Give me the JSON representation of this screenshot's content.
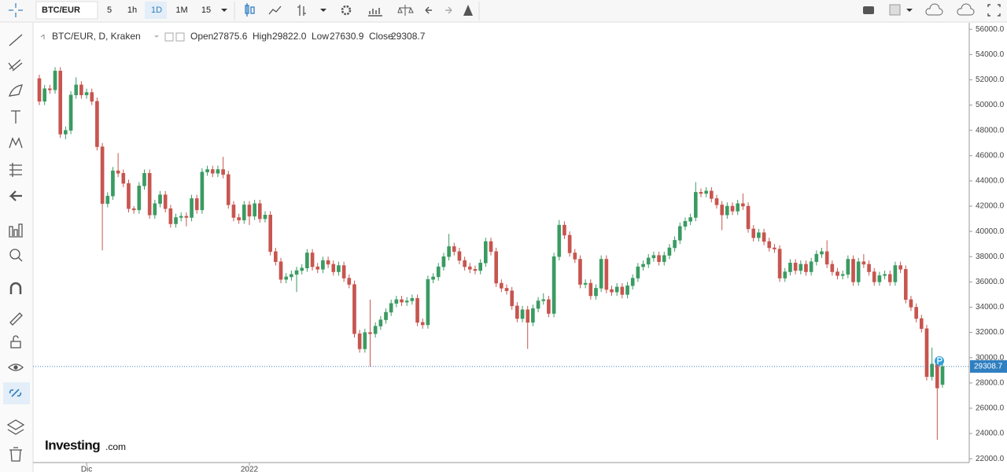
{
  "toolbar": {
    "symbol": "BTC/EUR",
    "intervals": [
      "5",
      "1h",
      "1D",
      "1M",
      "15"
    ]
  },
  "logo": {
    "brand": "Investing",
    "suffix": ".com"
  },
  "chart_data": {
    "type": "candlestick",
    "header": {
      "title": "BTC/EUR, D, Kraken",
      "fields": [
        "Open",
        "High",
        "Low",
        "Close"
      ],
      "value_labels": [
        "27875.6",
        "29822.0",
        "27630.9",
        "29308.7"
      ]
    },
    "up_color": "#3a9b62",
    "down_color": "#c7554f",
    "ylim": [
      21700,
      56450
    ],
    "yticks": [
      {
        "value": 22000,
        "label": "22000.0"
      },
      {
        "value": 24000,
        "label": "24000.0"
      },
      {
        "value": 26000,
        "label": "26000.0"
      },
      {
        "value": 28000,
        "label": "28000.0"
      },
      {
        "value": 30000,
        "label": "30000.0"
      },
      {
        "value": 32000,
        "label": "32000.0"
      },
      {
        "value": 34000,
        "label": "34000.0"
      },
      {
        "value": 36000,
        "label": "36000.0"
      },
      {
        "value": 38000,
        "label": "38000.0"
      },
      {
        "value": 40000,
        "label": "40000.0"
      },
      {
        "value": 42000,
        "label": "42000.0"
      },
      {
        "value": 44000,
        "label": "44000.0"
      },
      {
        "value": 46000,
        "label": "46000.0"
      },
      {
        "value": 48000,
        "label": "48000.0"
      },
      {
        "value": 50000,
        "label": "50000.0"
      },
      {
        "value": 52000,
        "label": "52000.0"
      },
      {
        "value": 54000,
        "label": "54000.0"
      },
      {
        "value": 56000,
        "label": "56000.0"
      }
    ],
    "categories": [
      null,
      null,
      null,
      null,
      null,
      null,
      null,
      null,
      null,
      "Dic",
      null,
      null,
      null,
      null,
      null,
      null,
      null,
      null,
      null,
      null,
      null,
      null,
      null,
      null,
      null,
      null,
      null,
      null,
      null,
      null,
      null,
      null,
      null,
      null,
      null,
      null,
      null,
      null,
      null,
      null,
      "2022",
      null,
      null,
      null,
      null,
      null,
      null,
      null,
      null,
      null,
      null,
      null,
      null,
      null,
      null,
      null,
      null,
      null,
      null,
      null,
      null,
      null,
      null,
      null,
      null,
      null,
      null,
      null,
      null,
      null,
      null,
      null,
      null,
      null,
      null,
      null,
      null,
      null,
      null,
      null,
      null,
      null,
      null,
      null,
      null,
      null,
      null,
      null,
      null,
      null,
      null,
      null,
      null,
      null,
      null,
      null,
      null,
      null,
      null,
      null,
      null,
      null,
      null,
      null,
      null,
      null,
      null,
      null,
      null,
      null,
      null,
      null,
      null,
      null,
      null,
      null,
      null,
      null,
      null,
      null,
      null,
      null,
      null,
      null,
      null,
      null,
      null,
      null,
      null,
      null,
      null,
      null,
      null,
      null,
      null,
      null,
      null,
      null,
      null,
      null,
      null,
      null,
      null,
      null,
      null,
      null,
      null,
      null,
      null,
      null,
      null,
      null,
      null,
      null,
      null,
      null,
      null,
      null,
      null,
      null,
      null,
      null,
      null,
      null,
      null,
      null,
      null,
      null,
      null,
      null,
      null,
      null,
      null
    ],
    "open": [
      52100,
      50300,
      51300,
      51200,
      52700,
      47700,
      48000,
      50800,
      51600,
      50800,
      51000,
      50300,
      46700,
      42200,
      42800,
      44800,
      44600,
      43800,
      41800,
      41700,
      43600,
      44600,
      41300,
      42200,
      42900,
      41800,
      40600,
      41100,
      41200,
      41100,
      42600,
      41700,
      44700,
      44900,
      44600,
      44900,
      44500,
      42100,
      41100,
      40900,
      42100,
      41200,
      42200,
      41000,
      41300,
      38400,
      37600,
      36200,
      36400,
      36600,
      36900,
      37100,
      38300,
      37200,
      37000,
      37700,
      37400,
      36800,
      37300,
      36300,
      35800,
      31900,
      30700,
      32000,
      31900,
      32500,
      33000,
      33600,
      34300,
      34600,
      34400,
      34500,
      34700,
      32800,
      32600,
      36200,
      36400,
      37200,
      38000,
      38800,
      38400,
      37700,
      37200,
      37000,
      36900,
      37500,
      39200,
      38400,
      35900,
      35500,
      35300,
      34100,
      33100,
      33800,
      32800,
      33900,
      34500,
      34600,
      33500,
      38000,
      40500,
      39700,
      38300,
      37800,
      35800,
      35900,
      34900,
      35500,
      37800,
      35400,
      35200,
      35600,
      35000,
      35700,
      36300,
      37200,
      37400,
      37900,
      38100,
      37600,
      38100,
      38700,
      39300,
      40400,
      40800,
      41100,
      43100,
      43000,
      43200,
      42600,
      42100,
      41300,
      42000,
      41600,
      42200,
      42000,
      40200,
      39500,
      39900,
      39200,
      38700,
      38600,
      36300,
      36800,
      37500,
      36900,
      37400,
      36800,
      37600,
      38200,
      38400,
      37400,
      36800,
      36500,
      36600,
      37800,
      36000,
      37600,
      37400,
      36800,
      36000,
      36500,
      36600,
      36000,
      37300,
      37000,
      34600,
      34000,
      33100,
      32300,
      28500,
      29500,
      27875.6
    ],
    "high": [
      52400,
      51600,
      51600,
      53000,
      53000,
      48300,
      51100,
      52200,
      51900,
      51300,
      51300,
      50600,
      47000,
      43100,
      45100,
      46200,
      44900,
      44100,
      42000,
      43900,
      44900,
      44900,
      42500,
      43200,
      43200,
      42100,
      41400,
      41500,
      41500,
      42900,
      42900,
      45000,
      45200,
      45200,
      45200,
      45900,
      44800,
      42400,
      41400,
      42400,
      42400,
      42500,
      42500,
      41600,
      41600,
      38700,
      37900,
      36700,
      36900,
      37200,
      37400,
      38600,
      38600,
      37500,
      38000,
      38000,
      37700,
      37600,
      37600,
      36600,
      36100,
      32200,
      32300,
      34600,
      32800,
      33300,
      33900,
      34600,
      34900,
      34900,
      34800,
      35000,
      35000,
      33100,
      36500,
      36700,
      37500,
      38300,
      39800,
      39100,
      38700,
      38000,
      37500,
      37300,
      37800,
      39500,
      39500,
      38700,
      36200,
      35800,
      35600,
      34400,
      34100,
      34100,
      34200,
      34800,
      35100,
      34900,
      38300,
      40900,
      40800,
      40000,
      38600,
      38100,
      36200,
      36200,
      35800,
      38100,
      38100,
      35700,
      35900,
      35900,
      36000,
      36600,
      37500,
      37700,
      38200,
      38400,
      38400,
      38400,
      39000,
      39600,
      40700,
      41100,
      41400,
      43900,
      43400,
      43500,
      43500,
      42900,
      42400,
      42300,
      42300,
      42500,
      43000,
      42300,
      40500,
      40200,
      40200,
      39500,
      39000,
      38900,
      37100,
      37800,
      37800,
      37700,
      37700,
      37900,
      38500,
      38700,
      39300,
      37700,
      37100,
      36900,
      38100,
      38100,
      37900,
      38200,
      37700,
      37100,
      36800,
      36900,
      36900,
      37600,
      37600,
      37300,
      34900,
      34300,
      33400,
      32600,
      30800,
      29800,
      29822.0
    ],
    "low": [
      50000,
      50000,
      50900,
      50900,
      47400,
      47300,
      47700,
      50500,
      50500,
      50500,
      50000,
      46400,
      38500,
      41900,
      42500,
      44300,
      43500,
      41500,
      41400,
      41400,
      43300,
      41000,
      41000,
      41900,
      41500,
      40300,
      40300,
      40800,
      40400,
      40800,
      41400,
      41400,
      44400,
      44300,
      44300,
      44200,
      41800,
      40800,
      40600,
      40600,
      40500,
      40900,
      40700,
      40700,
      38100,
      37300,
      35900,
      35900,
      36100,
      35200,
      36600,
      36800,
      36900,
      36700,
      36700,
      37100,
      36500,
      36500,
      36000,
      35500,
      31600,
      30400,
      30400,
      29300,
      31600,
      32200,
      32700,
      33300,
      34000,
      34100,
      34100,
      34200,
      32500,
      32300,
      32300,
      35900,
      36100,
      36900,
      37700,
      38100,
      37400,
      36900,
      36700,
      36600,
      36600,
      37200,
      38100,
      35600,
      35200,
      35000,
      33800,
      32800,
      32800,
      30700,
      32500,
      33600,
      34200,
      33200,
      33200,
      37700,
      39400,
      38000,
      37500,
      35500,
      35500,
      34600,
      34600,
      35200,
      35100,
      34900,
      34900,
      34700,
      34700,
      35400,
      36000,
      36900,
      37100,
      37600,
      37300,
      37300,
      37800,
      38400,
      39000,
      40100,
      40500,
      40800,
      42700,
      42700,
      42300,
      41800,
      40100,
      41000,
      41300,
      41300,
      41700,
      39900,
      39200,
      39200,
      38900,
      38400,
      38300,
      36000,
      36000,
      36500,
      36600,
      36600,
      36500,
      36500,
      37300,
      37900,
      37100,
      36500,
      36200,
      36200,
      36300,
      35700,
      35700,
      37100,
      36500,
      35700,
      35700,
      36200,
      35700,
      35700,
      36700,
      34300,
      33700,
      32800,
      32000,
      28200,
      28200,
      23500,
      27630.9
    ],
    "close": [
      50300,
      51300,
      51200,
      52700,
      47700,
      48000,
      50800,
      51600,
      50800,
      51000,
      50300,
      46700,
      42200,
      42800,
      44800,
      44600,
      43800,
      41800,
      41700,
      43600,
      44600,
      41300,
      42200,
      42900,
      41800,
      40600,
      41100,
      41200,
      41100,
      42600,
      41700,
      44700,
      44900,
      44600,
      44900,
      44500,
      42100,
      41100,
      40900,
      42100,
      41200,
      42200,
      41000,
      41300,
      38400,
      37600,
      36200,
      36400,
      36600,
      36900,
      37100,
      38300,
      37200,
      37000,
      37700,
      37400,
      36800,
      37300,
      36300,
      35800,
      31900,
      30700,
      32000,
      31900,
      32500,
      33000,
      33600,
      34300,
      34600,
      34400,
      34500,
      34700,
      32800,
      32600,
      36200,
      36400,
      37200,
      38000,
      38800,
      38400,
      37700,
      37200,
      37000,
      36900,
      37500,
      39200,
      38400,
      35900,
      35500,
      35300,
      34100,
      33100,
      33800,
      32800,
      33900,
      34500,
      34600,
      33500,
      38000,
      40500,
      39700,
      38300,
      37800,
      35800,
      35900,
      34900,
      35500,
      37800,
      35400,
      35200,
      35600,
      35000,
      35700,
      36300,
      37200,
      37400,
      37900,
      38100,
      37600,
      38100,
      38700,
      39300,
      40400,
      40800,
      41100,
      43100,
      43000,
      43200,
      42600,
      42100,
      41300,
      42000,
      41600,
      42200,
      42000,
      40200,
      39500,
      39900,
      39200,
      38700,
      38600,
      36300,
      36800,
      37500,
      36900,
      37400,
      36800,
      37600,
      38200,
      38400,
      37400,
      36800,
      36500,
      36600,
      37800,
      36000,
      37600,
      37400,
      36800,
      36000,
      36500,
      36600,
      36000,
      37300,
      37000,
      34600,
      34000,
      33100,
      32300,
      28500,
      29500,
      27600,
      29308.7
    ]
  }
}
